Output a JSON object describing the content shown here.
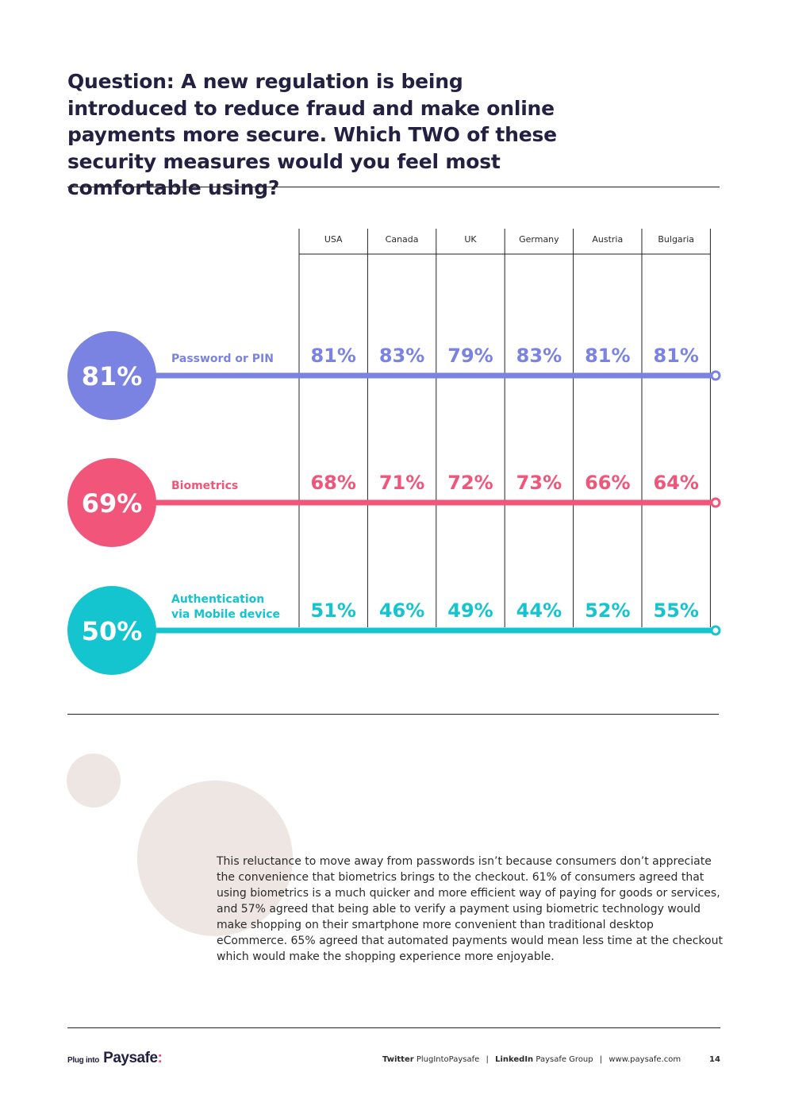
{
  "question": "Question: A new regulation is being introduced to reduce fraud and make online payments more secure. Which TWO of these security measures would you feel most comfortable using?",
  "chart_data": {
    "type": "table",
    "categories": [
      "USA",
      "Canada",
      "UK",
      "Germany",
      "Austria",
      "Bulgaria"
    ],
    "series": [
      {
        "name": "Password or PIN",
        "overall": "81%",
        "values": [
          81,
          83,
          79,
          83,
          81,
          81
        ],
        "color": "#7b83e2"
      },
      {
        "name": "Biometrics",
        "overall": "69%",
        "values": [
          68,
          71,
          72,
          73,
          66,
          64
        ],
        "color": "#f1557a"
      },
      {
        "name": "Authentication via Mobile device",
        "overall": "50%",
        "values": [
          51,
          46,
          49,
          44,
          52,
          55
        ],
        "color": "#14c4ce"
      }
    ],
    "unit": "%"
  },
  "body": "This reluctance to move away from passwords isn’t because consumers don’t appreciate the convenience that biometrics brings to the checkout. 61% of consumers agreed that using biometrics is a much quicker and more efficient way of paying for goods or services, and 57% agreed that being able to verify a payment using biometric technology would make shopping on their smartphone more convenient than traditional desktop eCommerce. 65% agreed that automated payments would mean less time at the checkout which would make the shopping experience more enjoyable.",
  "footer": {
    "logo_small": "Plug into",
    "logo_big": "Paysafe",
    "logo_colon": ":",
    "twitter_label": "Twitter",
    "twitter_handle": "PlugIntoPaysafe",
    "linkedin_label": "LinkedIn",
    "linkedin_handle": "Paysafe Group",
    "website": "www.paysafe.com",
    "separator": "|",
    "page_number": "14"
  },
  "colors": {
    "text": "#232042",
    "decor": "#ede6e3",
    "accent": "#e94f7a"
  }
}
